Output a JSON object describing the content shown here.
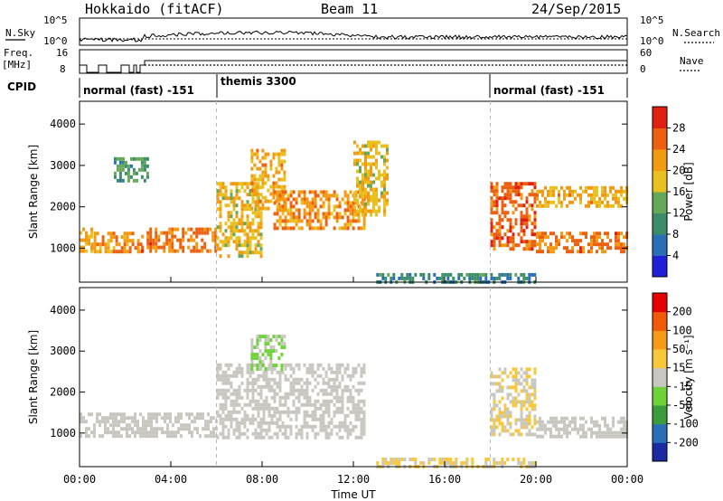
{
  "header": {
    "title": "Hokkaido (fitACF)",
    "beam": "Beam 11",
    "date": "24/Sep/2015"
  },
  "panels": {
    "nsky_label": "N.Sky",
    "nsky_ticks": [
      "10^5",
      "10^0"
    ],
    "nsearch_label": "N.Search",
    "nsearch_ticks": [
      "10^5",
      "10^0"
    ],
    "freq_label_1": "Freq.",
    "freq_label_2": "[MHz]",
    "freq_ticks": [
      "16",
      "8"
    ],
    "nave_label": "Nave",
    "nave_ticks": [
      "60",
      "0"
    ],
    "cpid_label": "CPID",
    "cpid_segments": [
      {
        "label": "normal (fast) -151",
        "start_h": 0,
        "end_h": 6
      },
      {
        "label": "themis 3300",
        "start_h": 6,
        "end_h": 18
      },
      {
        "label": "normal (fast) -151",
        "start_h": 18,
        "end_h": 24
      }
    ]
  },
  "colors": {
    "power_scale": [
      "#2020d8",
      "#2a6fb5",
      "#3c8c6a",
      "#66a85a",
      "#e8c020",
      "#f29a12",
      "#ec6010",
      "#e02010"
    ],
    "velocity_scale": [
      "#e80000",
      "#f05a0a",
      "#f59b18",
      "#f8c83a",
      "#c8c8c0",
      "#6ed23a",
      "#3a9c3a",
      "#2a6fb5",
      "#1a2aa0"
    ]
  },
  "chart_data": [
    {
      "type": "heatmap",
      "name": "power",
      "xlabel": "",
      "ylabel": "Slant Range [km]",
      "xlim_hours": [
        0,
        24
      ],
      "ylim": [
        180,
        4550
      ],
      "yticks": [
        1000,
        2000,
        3000,
        4000
      ],
      "colorbar": {
        "label": "Power [dB]",
        "ticks": [
          "4",
          "8",
          "12",
          "16",
          "20",
          "24",
          "28"
        ],
        "range": [
          0,
          30
        ]
      },
      "regions": [
        {
          "x": [
            0.0,
            0.5
          ],
          "y": [
            900,
            1500
          ],
          "value": 20
        },
        {
          "x": [
            0.5,
            2.7
          ],
          "y": [
            900,
            1400
          ],
          "value": 22
        },
        {
          "x": [
            2.7,
            6.0
          ],
          "y": [
            900,
            1500
          ],
          "value": 24
        },
        {
          "x": [
            1.5,
            3.0
          ],
          "y": [
            2600,
            3200
          ],
          "value": 10
        },
        {
          "x": [
            6.0,
            8.0
          ],
          "y": [
            800,
            2600
          ],
          "value": 18
        },
        {
          "x": [
            7.5,
            9.0
          ],
          "y": [
            2000,
            3400
          ],
          "value": 20
        },
        {
          "x": [
            8.5,
            12.5
          ],
          "y": [
            1500,
            2400
          ],
          "value": 22
        },
        {
          "x": [
            12.0,
            13.5
          ],
          "y": [
            1800,
            3600
          ],
          "value": 18
        },
        {
          "x": [
            18.0,
            20.0
          ],
          "y": [
            1000,
            2600
          ],
          "value": 26
        },
        {
          "x": [
            20.0,
            24.0
          ],
          "y": [
            900,
            1400
          ],
          "value": 24
        },
        {
          "x": [
            20.0,
            24.0
          ],
          "y": [
            2000,
            2500
          ],
          "value": 20
        },
        {
          "x": [
            13.0,
            20.0
          ],
          "y": [
            200,
            400
          ],
          "value": 8
        }
      ]
    },
    {
      "type": "heatmap",
      "name": "velocity",
      "xlabel": "Time UT",
      "ylabel": "Slant Range [km]",
      "xlim_hours": [
        0,
        24
      ],
      "ylim": [
        180,
        4550
      ],
      "xticks": [
        "00:00",
        "04:00",
        "08:00",
        "12:00",
        "16:00",
        "20:00",
        "00:00"
      ],
      "yticks": [
        1000,
        2000,
        3000,
        4000
      ],
      "colorbar": {
        "label": "Velocity [m s⁻¹]",
        "ticks": [
          "200",
          "100",
          "50",
          "15",
          "-15",
          "-50",
          "-100",
          "-200"
        ],
        "range": [
          -250,
          250
        ]
      },
      "regions": [
        {
          "x": [
            0.0,
            6.0
          ],
          "y": [
            900,
            1500
          ],
          "value": 0
        },
        {
          "x": [
            6.0,
            12.5
          ],
          "y": [
            900,
            2700
          ],
          "value": 0
        },
        {
          "x": [
            7.5,
            9.0
          ],
          "y": [
            2600,
            3400
          ],
          "value": -40
        },
        {
          "x": [
            18.0,
            20.0
          ],
          "y": [
            1000,
            2600
          ],
          "value": 30
        },
        {
          "x": [
            20.0,
            24.0
          ],
          "y": [
            900,
            1400
          ],
          "value": 0
        },
        {
          "x": [
            13.0,
            20.0
          ],
          "y": [
            200,
            400
          ],
          "value": 30
        }
      ]
    }
  ]
}
